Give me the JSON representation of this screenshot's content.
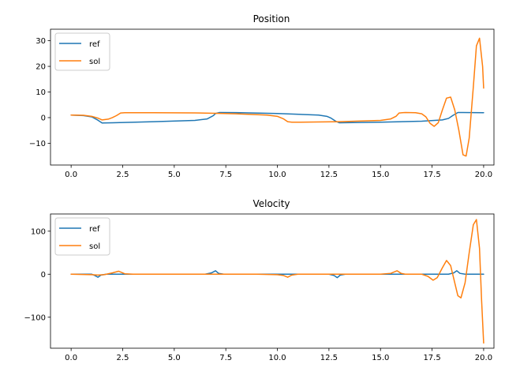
{
  "chart_data": [
    {
      "type": "line",
      "title": "Position",
      "xlabel": "",
      "ylabel": "",
      "xlim": [
        -1,
        20.5
      ],
      "ylim": [
        -18.5,
        34.5
      ],
      "xticks": [
        0.0,
        2.5,
        5.0,
        7.5,
        10.0,
        12.5,
        15.0,
        17.5,
        20.0
      ],
      "xtick_labels": [
        "0.0",
        "2.5",
        "5.0",
        "7.5",
        "10.0",
        "12.5",
        "15.0",
        "17.5",
        "20.0"
      ],
      "yticks": [
        -10,
        0,
        10,
        20,
        30
      ],
      "ytick_labels": [
        "−10",
        "0",
        "10",
        "20",
        "30"
      ],
      "legend": {
        "placement": "top-left",
        "entries": [
          "ref",
          "sol"
        ]
      },
      "series": [
        {
          "name": "ref",
          "color": "#1f77b4",
          "x": [
            0.0,
            0.6,
            1.0,
            1.3,
            1.5,
            2.0,
            4.0,
            6.0,
            6.6,
            6.9,
            7.0,
            7.2,
            8.0,
            10.0,
            12.0,
            12.4,
            12.6,
            12.85,
            13.0,
            15.0,
            17.0,
            18.0,
            18.3,
            18.5,
            18.75,
            19.0,
            20.0
          ],
          "y": [
            1.0,
            0.8,
            0.3,
            -1.0,
            -2.1,
            -2.0,
            -1.6,
            -1.1,
            -0.5,
            0.8,
            1.6,
            2.0,
            1.95,
            1.6,
            1.0,
            0.5,
            -0.2,
            -1.5,
            -2.0,
            -1.8,
            -1.4,
            -0.9,
            -0.3,
            0.8,
            2.0,
            2.0,
            1.9
          ]
        },
        {
          "name": "sol",
          "color": "#ff7f0e",
          "x": [
            0.0,
            0.6,
            1.0,
            1.3,
            1.5,
            1.8,
            2.0,
            2.2,
            2.4,
            2.6,
            4.0,
            6.0,
            7.0,
            8.0,
            9.5,
            10.0,
            10.3,
            10.5,
            10.7,
            11.0,
            13.0,
            15.0,
            15.5,
            15.75,
            15.9,
            16.2,
            16.7,
            17.0,
            17.2,
            17.4,
            17.6,
            17.8,
            18.0,
            18.2,
            18.4,
            18.6,
            18.8,
            19.0,
            19.15,
            19.3,
            19.5,
            19.65,
            19.8,
            19.95,
            20.0
          ],
          "y": [
            1.0,
            0.9,
            0.5,
            -0.2,
            -0.9,
            -0.6,
            0.0,
            0.8,
            1.8,
            1.9,
            1.9,
            1.85,
            1.7,
            1.5,
            1.0,
            0.5,
            -0.5,
            -1.6,
            -1.8,
            -1.8,
            -1.6,
            -1.1,
            -0.5,
            0.5,
            1.8,
            2.0,
            1.9,
            1.5,
            0.3,
            -2.2,
            -3.4,
            -2.0,
            3.0,
            7.6,
            8.0,
            3.0,
            -5.0,
            -14.5,
            -15.0,
            -8.0,
            12.0,
            28.0,
            31.0,
            20.0,
            11.5
          ]
        }
      ]
    },
    {
      "type": "line",
      "title": "Velocity",
      "xlabel": "",
      "ylabel": "",
      "xlim": [
        -1,
        20.5
      ],
      "ylim": [
        -172,
        140
      ],
      "xticks": [
        0.0,
        2.5,
        5.0,
        7.5,
        10.0,
        12.5,
        15.0,
        17.5,
        20.0
      ],
      "xtick_labels": [
        "0.0",
        "2.5",
        "5.0",
        "7.5",
        "10.0",
        "12.5",
        "15.0",
        "17.5",
        "20.0"
      ],
      "yticks": [
        -100,
        0,
        100
      ],
      "ytick_labels": [
        "−100",
        "0",
        "100"
      ],
      "legend": {
        "placement": "top-left",
        "entries": [
          "ref",
          "sol"
        ]
      },
      "series": [
        {
          "name": "ref",
          "color": "#1f77b4",
          "x": [
            0.0,
            1.0,
            1.15,
            1.3,
            1.45,
            1.7,
            6.5,
            6.8,
            7.0,
            7.15,
            7.4,
            12.5,
            12.75,
            12.9,
            13.05,
            13.3,
            18.3,
            18.55,
            18.7,
            18.85,
            19.1,
            20.0
          ],
          "y": [
            0,
            0,
            -3,
            -7,
            -2,
            0,
            0,
            3,
            8,
            2,
            0,
            0,
            -3,
            -8,
            -2,
            0,
            0,
            3,
            8,
            2,
            0,
            0
          ]
        },
        {
          "name": "sol",
          "color": "#ff7f0e",
          "x": [
            0.0,
            1.0,
            1.3,
            1.6,
            2.0,
            2.3,
            2.6,
            3.0,
            9.0,
            10.0,
            10.3,
            10.5,
            10.7,
            11.0,
            15.0,
            15.5,
            15.8,
            16.0,
            16.2,
            17.0,
            17.3,
            17.55,
            17.75,
            18.0,
            18.2,
            18.4,
            18.6,
            18.75,
            18.9,
            19.1,
            19.3,
            19.5,
            19.65,
            19.8,
            19.9,
            20.0
          ],
          "y": [
            0,
            -1,
            -2,
            -1,
            3,
            7,
            1,
            0,
            0,
            -1,
            -3,
            -7,
            -2,
            0,
            0,
            2,
            8,
            2,
            0,
            0,
            -5,
            -14,
            -8,
            15,
            32,
            20,
            -20,
            -50,
            -55,
            -20,
            50,
            115,
            127,
            60,
            -60,
            -160
          ]
        }
      ]
    }
  ]
}
